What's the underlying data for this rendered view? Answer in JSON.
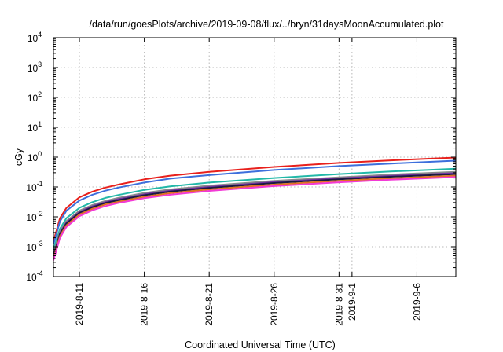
{
  "chart_data": {
    "type": "line",
    "title": "/data/run/goesPlots/archive/2019-09-08/flux/../bryn/31daysMoonAccumulated.plot",
    "xlabel": "Coordinated Universal Time (UTC)",
    "ylabel": "cGy",
    "y_scale": "log",
    "ylim": [
      0.0001,
      10000
    ],
    "y_ticks": [
      {
        "value": 0.0001,
        "base": "10",
        "exp": "-4"
      },
      {
        "value": 0.001,
        "base": "10",
        "exp": "-3"
      },
      {
        "value": 0.01,
        "base": "10",
        "exp": "-2"
      },
      {
        "value": 0.1,
        "base": "10",
        "exp": "-1"
      },
      {
        "value": 1,
        "base": "10",
        "exp": "0"
      },
      {
        "value": 10,
        "base": "10",
        "exp": "1"
      },
      {
        "value": 100,
        "base": "10",
        "exp": "2"
      },
      {
        "value": 1000,
        "base": "10",
        "exp": "3"
      },
      {
        "value": 10000,
        "base": "10",
        "exp": "4"
      }
    ],
    "xlim": [
      "2019-08-09T00:00",
      "2019-09-09T00:00"
    ],
    "x_ticks": [
      {
        "value": "2019-08-11",
        "label": "2019-8-11"
      },
      {
        "value": "2019-08-16",
        "label": "2019-8-16"
      },
      {
        "value": "2019-08-21",
        "label": "2019-8-21"
      },
      {
        "value": "2019-08-26",
        "label": "2019-8-26"
      },
      {
        "value": "2019-08-31",
        "label": "2019-8-31"
      },
      {
        "value": "2019-09-01",
        "label": "2019-9-1"
      },
      {
        "value": "2019-09-06",
        "label": "2019-9-6"
      }
    ],
    "grid": true,
    "legend": "none",
    "x": [
      "2019-08-09T00:00",
      "2019-08-09T12:00",
      "2019-08-10T00:00",
      "2019-08-11T00:00",
      "2019-08-12T00:00",
      "2019-08-13T00:00",
      "2019-08-14T00:00",
      "2019-08-16T00:00",
      "2019-08-18T00:00",
      "2019-08-21T00:00",
      "2019-08-26T00:00",
      "2019-08-31T00:00",
      "2019-09-04T00:00",
      "2019-09-09T00:00"
    ],
    "series": [
      {
        "color": "#e8201c",
        "values": [
          0.0015,
          0.009,
          0.02,
          0.045,
          0.07,
          0.095,
          0.12,
          0.18,
          0.24,
          0.32,
          0.47,
          0.64,
          0.78,
          0.97
        ]
      },
      {
        "color": "#3d6fdc",
        "values": [
          0.0012,
          0.007,
          0.016,
          0.035,
          0.055,
          0.075,
          0.095,
          0.14,
          0.19,
          0.25,
          0.37,
          0.5,
          0.61,
          0.76
        ]
      },
      {
        "color": "#22b8a8",
        "values": [
          0.0008,
          0.004,
          0.009,
          0.02,
          0.031,
          0.043,
          0.054,
          0.08,
          0.105,
          0.14,
          0.2,
          0.27,
          0.33,
          0.41
        ]
      },
      {
        "color": "#8a8a8a",
        "values": [
          0.0006,
          0.0032,
          0.0072,
          0.016,
          0.025,
          0.034,
          0.043,
          0.063,
          0.083,
          0.11,
          0.16,
          0.21,
          0.26,
          0.32
        ]
      },
      {
        "color": "#7030a0",
        "values": [
          0.0005,
          0.0029,
          0.0065,
          0.0145,
          0.0225,
          0.031,
          0.039,
          0.057,
          0.075,
          0.1,
          0.145,
          0.195,
          0.235,
          0.29
        ]
      },
      {
        "color": "#1a1a40",
        "values": [
          0.00045,
          0.0027,
          0.006,
          0.0135,
          0.021,
          0.029,
          0.036,
          0.053,
          0.07,
          0.093,
          0.135,
          0.18,
          0.22,
          0.27
        ]
      },
      {
        "color": "#e07020",
        "values": [
          0.0004,
          0.0023,
          0.0052,
          0.012,
          0.0185,
          0.026,
          0.032,
          0.047,
          0.062,
          0.083,
          0.12,
          0.16,
          0.195,
          0.24
        ]
      },
      {
        "color": "#f23ad6",
        "values": [
          0.00035,
          0.002,
          0.0046,
          0.0105,
          0.0165,
          0.023,
          0.029,
          0.042,
          0.055,
          0.074,
          0.107,
          0.143,
          0.175,
          0.215
        ]
      }
    ]
  }
}
